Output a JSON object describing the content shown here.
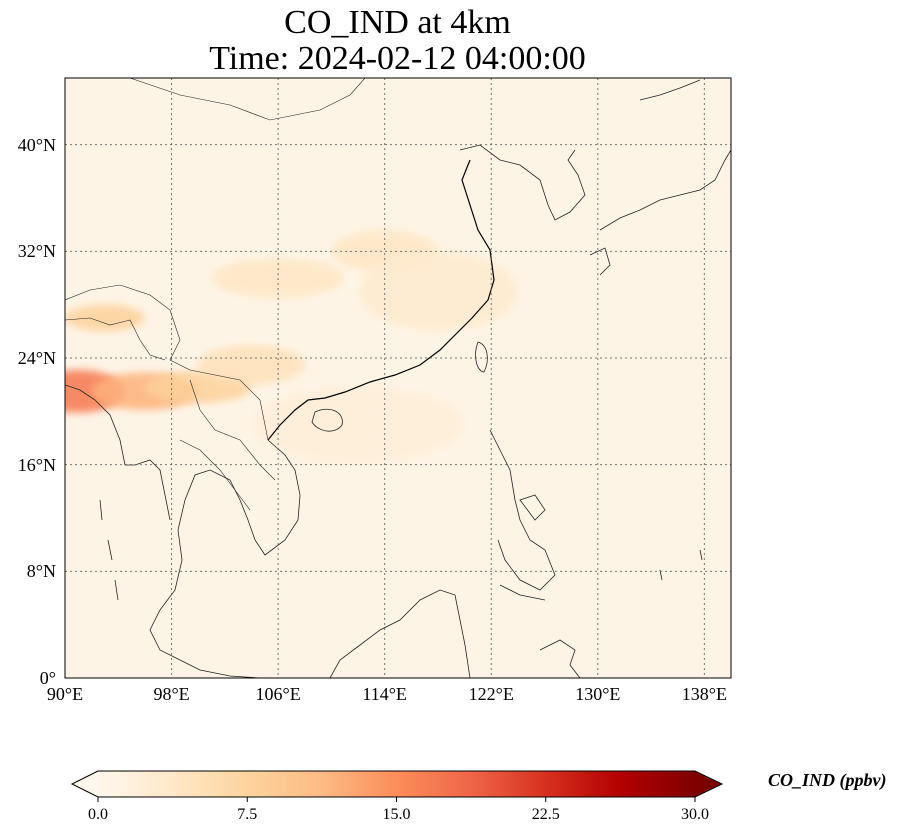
{
  "title": {
    "line1": "CO_IND at 4km",
    "line2": "Time: 2024-02-12 04:00:00"
  },
  "map": {
    "lon_range": [
      90,
      140
    ],
    "lat_range": [
      0,
      45
    ],
    "grid": true,
    "lat_ticks": [
      {
        "value": 0,
        "label": "0°"
      },
      {
        "value": 8,
        "label": "8°N"
      },
      {
        "value": 16,
        "label": "16°N"
      },
      {
        "value": 24,
        "label": "24°N"
      },
      {
        "value": 32,
        "label": "32°N"
      },
      {
        "value": 40,
        "label": "40°N"
      }
    ],
    "lon_ticks": [
      {
        "value": 90,
        "label": "90°E"
      },
      {
        "value": 98,
        "label": "98°E"
      },
      {
        "value": 106,
        "label": "106°E"
      },
      {
        "value": 114,
        "label": "114°E"
      },
      {
        "value": 122,
        "label": "122°E"
      },
      {
        "value": 130,
        "label": "130°E"
      },
      {
        "value": 138,
        "label": "138°E"
      }
    ],
    "field_plumes": [
      {
        "lon": 91,
        "lat": 21.5,
        "value": 17,
        "spread_lon": 3.5,
        "spread_lat": 1.6
      },
      {
        "lon": 96,
        "lat": 21.5,
        "value": 12,
        "spread_lon": 4,
        "spread_lat": 1.4
      },
      {
        "lon": 100,
        "lat": 21.8,
        "value": 8,
        "spread_lon": 4,
        "spread_lat": 1.2
      },
      {
        "lon": 104,
        "lat": 23.5,
        "value": 5,
        "spread_lon": 4,
        "spread_lat": 1.5
      },
      {
        "lon": 93,
        "lat": 27,
        "value": 8,
        "spread_lon": 3,
        "spread_lat": 1.0
      },
      {
        "lon": 106,
        "lat": 30,
        "value": 4,
        "spread_lon": 5,
        "spread_lat": 1.5
      },
      {
        "lon": 114,
        "lat": 32,
        "value": 4,
        "spread_lon": 4,
        "spread_lat": 1.6
      },
      {
        "lon": 118,
        "lat": 29,
        "value": 3,
        "spread_lon": 6,
        "spread_lat": 3
      },
      {
        "lon": 112,
        "lat": 19,
        "value": 2,
        "spread_lon": 8,
        "spread_lat": 3
      }
    ]
  },
  "colorbar": {
    "label": "CO_IND (ppbv)",
    "min": 0.0,
    "max": 30.0,
    "extend": "both",
    "colormap": "OrRd",
    "colors": [
      "#fff7ec",
      "#fee8c8",
      "#fdd49e",
      "#fdbb84",
      "#fc8d59",
      "#ef6548",
      "#d7301f",
      "#b30000",
      "#7f0000"
    ],
    "ticks": [
      {
        "value": 0.0,
        "label": "0.0"
      },
      {
        "value": 7.5,
        "label": "7.5"
      },
      {
        "value": 15.0,
        "label": "15.0"
      },
      {
        "value": 22.5,
        "label": "22.5"
      },
      {
        "value": 30.0,
        "label": "30.0"
      }
    ]
  }
}
